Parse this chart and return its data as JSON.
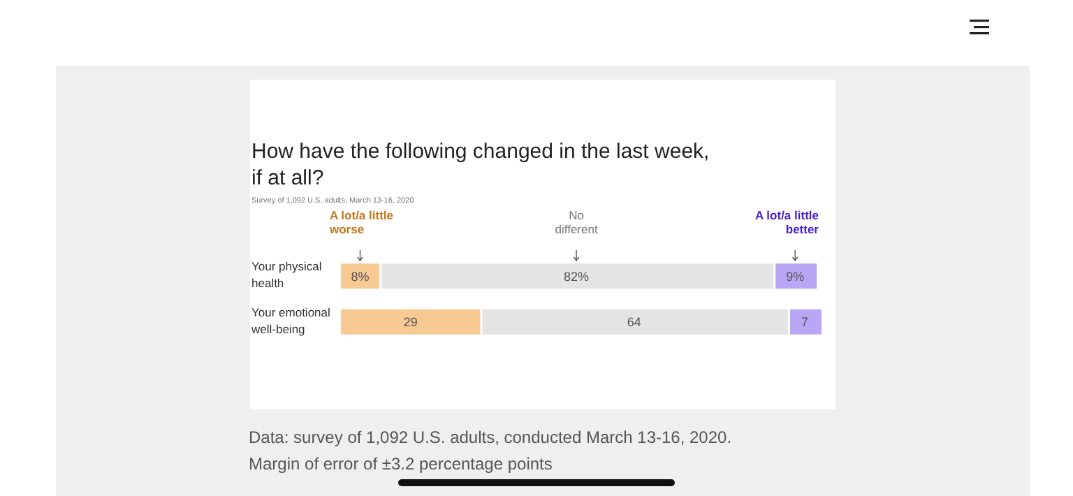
{
  "chart_data": {
    "type": "bar",
    "orientation": "horizontal",
    "stacked": true,
    "title": "How have the following changed in the last week,\nif at all?",
    "subtitle": "Survey of 1,092 U.S. adults, March 13-16, 2020",
    "categories": [
      "Your physical\nhealth",
      "Your emotional\nwell-being"
    ],
    "legend": "top",
    "series": [
      {
        "name": "A lot/a little\nworse",
        "color": "#f7c993",
        "values": [
          8,
          29
        ],
        "value_labels": [
          "8%",
          "29"
        ]
      },
      {
        "name": "No\ndifferent",
        "color": "#e4e4e4",
        "values": [
          82,
          64
        ],
        "value_labels": [
          "82%",
          "64"
        ]
      },
      {
        "name": "A lot/a little\nbetter",
        "color": "#b9a6f5",
        "values": [
          9,
          7
        ],
        "value_labels": [
          "9%",
          "7"
        ]
      }
    ],
    "annotations": [
      "Data: survey of 1,092 U.S. adults, conducted March 13-16, 2020.",
      "Margin of error of ±3.2 percentage points"
    ]
  }
}
